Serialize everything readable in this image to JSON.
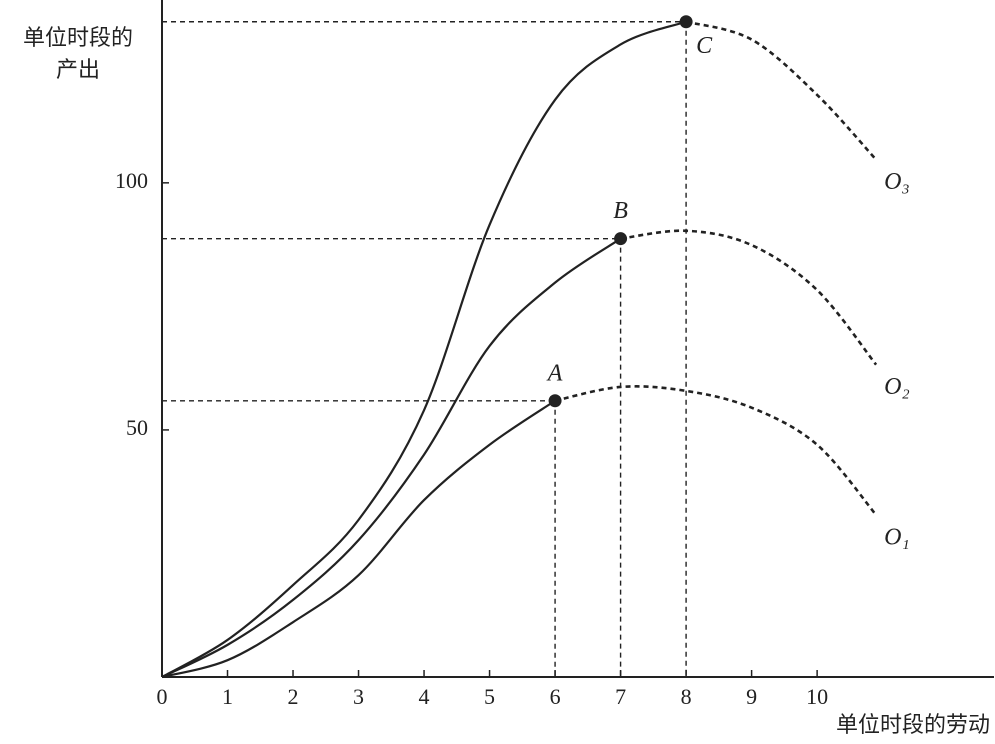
{
  "chart_data": {
    "type": "line",
    "y_label_lines": [
      "单位时段的",
      "产出"
    ],
    "x_label": "单位时段的劳动",
    "x": [
      0,
      1,
      2,
      3,
      4,
      5,
      6,
      7,
      8,
      9,
      10,
      10.9
    ],
    "xlim": [
      0,
      12.7
    ],
    "ylim": [
      0,
      137
    ],
    "xticks": [
      0,
      1,
      2,
      3,
      4,
      5,
      6,
      7,
      8,
      9,
      10
    ],
    "yticks": [
      50,
      100
    ],
    "series": [
      {
        "name": "O₁",
        "color": "#222222",
        "values": [
          0,
          3.4,
          11.1,
          20.6,
          35.8,
          47,
          55.9,
          58.7,
          57.9,
          54.5,
          47,
          32.8
        ],
        "point_label": "A",
        "point_x": 6
      },
      {
        "name": "O₂",
        "color": "#222222",
        "values": [
          0,
          6.5,
          15.6,
          27.7,
          45,
          67,
          79.8,
          88.7,
          90.3,
          87.4,
          78.3,
          63.2
        ],
        "point_label": "B",
        "point_x": 7
      },
      {
        "name": "O₃",
        "color": "#222222",
        "values": [
          0,
          7.5,
          18.6,
          31.8,
          54,
          91.5,
          116.8,
          128,
          132.6,
          129,
          117.8,
          104.7
        ],
        "point_label": "C",
        "point_x": 8
      }
    ]
  }
}
